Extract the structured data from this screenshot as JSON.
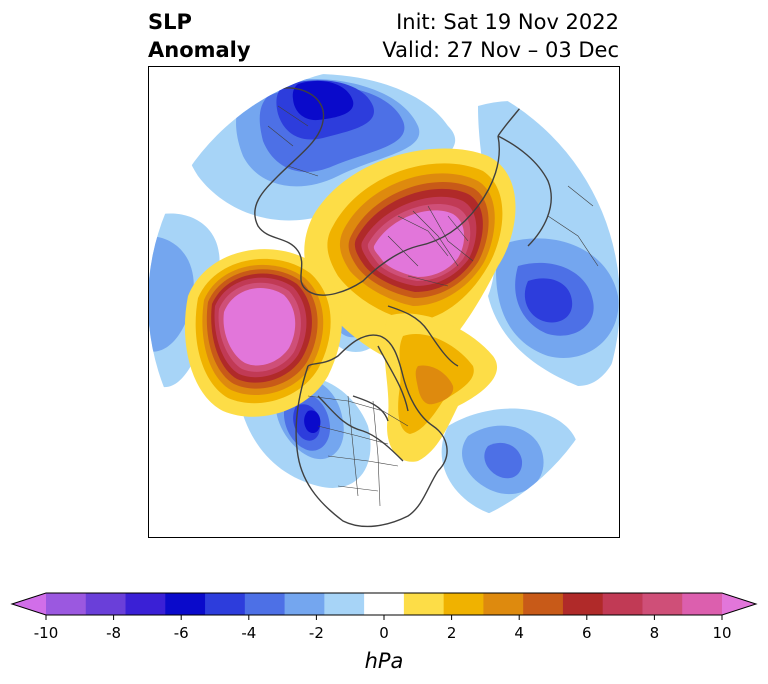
{
  "title": {
    "line1": "SLP",
    "line2": "Anomaly",
    "init": "Init: Sat 19 Nov 2022",
    "valid": "Valid: 27 Nov – 03 Dec"
  },
  "colorbar": {
    "unit": "hPa",
    "tick_labels": [
      "-10",
      "-8",
      "-6",
      "-4",
      "-2",
      "0",
      "2",
      "4",
      "6",
      "8",
      "10"
    ],
    "colors": [
      "#d16ee9",
      "#9b58e0",
      "#6a3fd9",
      "#3a20d6",
      "#0a0acb",
      "#2d3ddc",
      "#4d70e6",
      "#74a6ef",
      "#a7d4f7",
      "#ffffff",
      "#fddd47",
      "#f0b200",
      "#de8a0e",
      "#c85a18",
      "#b02a29",
      "#c13a55",
      "#cf4f78",
      "#dc5fae",
      "#e276da"
    ]
  }
}
